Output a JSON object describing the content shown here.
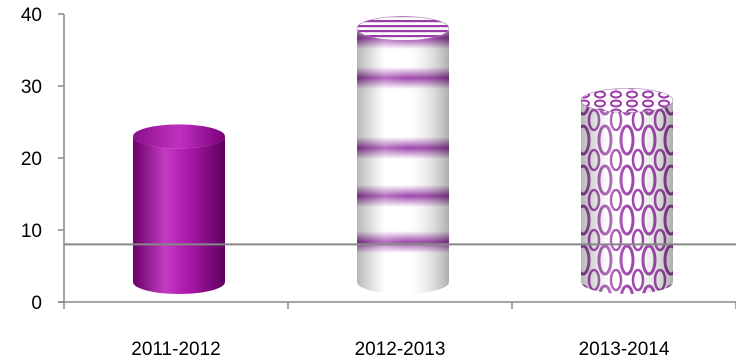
{
  "chart_data": {
    "type": "bar",
    "style": "3d-cylinder",
    "categories": [
      "2011-2012",
      "2012-2013",
      "2013-2014"
    ],
    "values": [
      23,
      38,
      28
    ],
    "ylim": [
      0,
      40
    ],
    "yticks": [
      0,
      10,
      20,
      30,
      40
    ],
    "reference_line": 8,
    "grid": false,
    "legend": "none",
    "fills": [
      "solid",
      "horizontal-stripes",
      "oval-pattern"
    ],
    "colors": {
      "bar": "#9c0c9c",
      "bar_light": "#cf5ccf",
      "bar_dark": "#6a006a",
      "pattern": "#9a3ca8",
      "axis": "#888888",
      "reference_line": "#888888"
    }
  }
}
